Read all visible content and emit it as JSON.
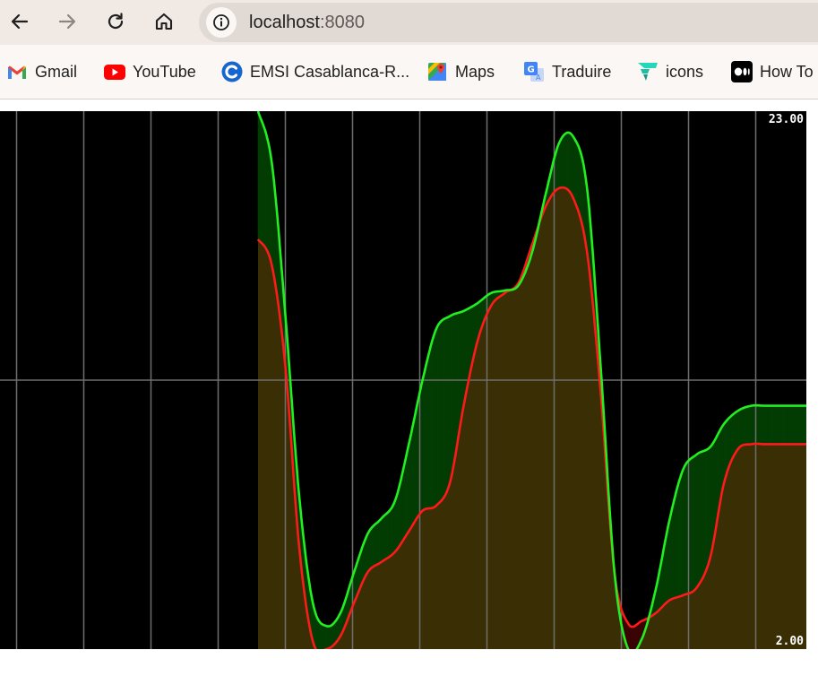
{
  "browser": {
    "url_host": "localhost",
    "url_port": ":8080",
    "bookmarks": [
      {
        "label": "Gmail",
        "icon": "gmail-icon"
      },
      {
        "label": "YouTube",
        "icon": "youtube-icon"
      },
      {
        "label": "EMSI Casablanca-R...",
        "icon": "emsi-icon"
      },
      {
        "label": "Maps",
        "icon": "maps-icon"
      },
      {
        "label": "Traduire",
        "icon": "translate-icon"
      },
      {
        "label": "icons",
        "icon": "icons8-icon"
      },
      {
        "label": "How To",
        "icon": "medium-icon"
      }
    ]
  },
  "chart_data": {
    "type": "area",
    "ylim": [
      2,
      23
    ],
    "max_label": "23.00",
    "min_label": "2.00",
    "grid": true,
    "colors": {
      "background": "#000000",
      "grid": "#6e6e6e",
      "series_green": "#22ee22",
      "series_red": "#ff1a1a",
      "fill_green": "#033d03",
      "fill_olive": "#3a2e04",
      "fill_red": "#3a0404"
    },
    "x": [
      0,
      1,
      2,
      3,
      4,
      5,
      6,
      7,
      8,
      9,
      10,
      11,
      12,
      13,
      14,
      15,
      16,
      17,
      18,
      19,
      20,
      21,
      22,
      23,
      24,
      25,
      26,
      27,
      28,
      29,
      30,
      31,
      32,
      33,
      34,
      35,
      36,
      37,
      38,
      39,
      40
    ],
    "series": [
      {
        "values": [
          23.0,
          21.0,
          15.0,
          8.0,
          3.8,
          2.9,
          3.4,
          5.0,
          6.5,
          7.1,
          7.8,
          10.0,
          12.5,
          14.5,
          15.0,
          15.2,
          15.5,
          15.9,
          16.0,
          16.2,
          17.5,
          19.8,
          21.8,
          22.0,
          20.0,
          13.0,
          5.0,
          2.0,
          2.4,
          4.3,
          7.0,
          9.0,
          9.6,
          9.9,
          10.8,
          11.3,
          11.5,
          11.5,
          11.5,
          11.5,
          11.5
        ]
      },
      {
        "values": [
          18.0,
          17.0,
          13.0,
          6.0,
          2.3,
          2.0,
          2.5,
          3.8,
          5.0,
          5.4,
          5.8,
          6.6,
          7.4,
          7.6,
          8.5,
          11.5,
          14.0,
          15.4,
          15.9,
          16.3,
          17.8,
          19.3,
          20.0,
          19.6,
          17.5,
          12.0,
          5.0,
          3.0,
          3.1,
          3.4,
          3.9,
          4.1,
          4.4,
          5.6,
          8.5,
          9.8,
          10.0,
          10.0,
          10.0,
          10.0,
          10.0
        ]
      }
    ]
  }
}
